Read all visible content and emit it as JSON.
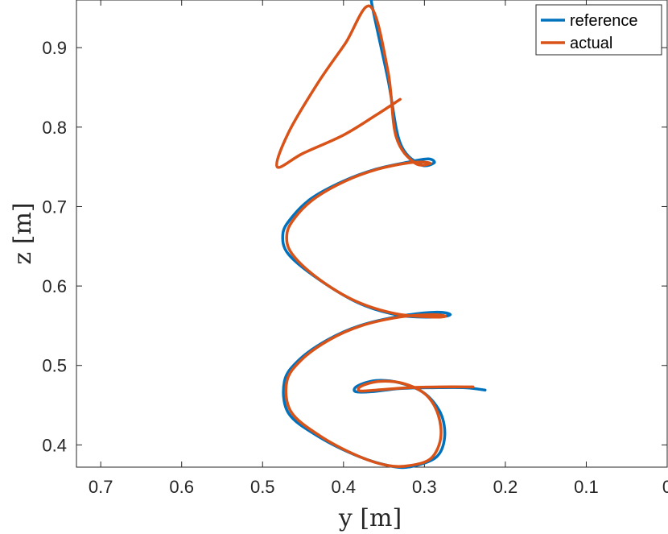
{
  "chart_data": {
    "type": "line",
    "title": "",
    "xlabel": "y [m]",
    "ylabel": "z [m]",
    "x_reversed": true,
    "xlim": [
      0,
      0.73
    ],
    "ylim": [
      0.372,
      0.96
    ],
    "xticks": [
      0.7,
      0.6,
      0.5,
      0.4,
      0.3,
      0.2,
      0.1,
      0
    ],
    "xtick_labels": [
      "0.7",
      "0.6",
      "0.5",
      "0.4",
      "0.3",
      "0.2",
      "0.1",
      "0"
    ],
    "yticks": [
      0.4,
      0.5,
      0.6,
      0.7,
      0.8,
      0.9
    ],
    "ytick_labels": [
      "0.4",
      "0.5",
      "0.6",
      "0.7",
      "0.8",
      "0.9"
    ],
    "grid": false,
    "legend_position": "top-right",
    "series": [
      {
        "name": "reference",
        "color": "#0072bd",
        "points": [
          [
            0.225,
            0.469
          ],
          [
            0.25,
            0.472
          ],
          [
            0.29,
            0.472
          ],
          [
            0.33,
            0.471
          ],
          [
            0.365,
            0.467
          ],
          [
            0.385,
            0.467
          ],
          [
            0.383,
            0.474
          ],
          [
            0.36,
            0.481
          ],
          [
            0.33,
            0.478
          ],
          [
            0.3,
            0.465
          ],
          [
            0.28,
            0.44
          ],
          [
            0.275,
            0.41
          ],
          [
            0.285,
            0.385
          ],
          [
            0.315,
            0.373
          ],
          [
            0.34,
            0.373
          ],
          [
            0.38,
            0.385
          ],
          [
            0.43,
            0.41
          ],
          [
            0.468,
            0.44
          ],
          [
            0.473,
            0.48
          ],
          [
            0.455,
            0.507
          ],
          [
            0.42,
            0.532
          ],
          [
            0.38,
            0.55
          ],
          [
            0.33,
            0.562
          ],
          [
            0.285,
            0.567
          ],
          [
            0.268,
            0.564
          ],
          [
            0.285,
            0.561
          ],
          [
            0.33,
            0.563
          ],
          [
            0.38,
            0.578
          ],
          [
            0.43,
            0.608
          ],
          [
            0.468,
            0.64
          ],
          [
            0.475,
            0.665
          ],
          [
            0.465,
            0.685
          ],
          [
            0.44,
            0.71
          ],
          [
            0.4,
            0.732
          ],
          [
            0.36,
            0.747
          ],
          [
            0.32,
            0.756
          ],
          [
            0.295,
            0.76
          ],
          [
            0.288,
            0.755
          ],
          [
            0.305,
            0.753
          ],
          [
            0.33,
            0.78
          ],
          [
            0.345,
            0.86
          ],
          [
            0.365,
            0.955
          ],
          [
            0.363,
            0.962
          ]
        ]
      },
      {
        "name": "actual",
        "color": "#d95319",
        "points": [
          [
            0.24,
            0.473
          ],
          [
            0.28,
            0.473
          ],
          [
            0.32,
            0.472
          ],
          [
            0.36,
            0.469
          ],
          [
            0.38,
            0.468
          ],
          [
            0.378,
            0.474
          ],
          [
            0.355,
            0.48
          ],
          [
            0.325,
            0.477
          ],
          [
            0.298,
            0.463
          ],
          [
            0.283,
            0.438
          ],
          [
            0.28,
            0.408
          ],
          [
            0.292,
            0.383
          ],
          [
            0.318,
            0.374
          ],
          [
            0.345,
            0.374
          ],
          [
            0.382,
            0.386
          ],
          [
            0.43,
            0.412
          ],
          [
            0.465,
            0.442
          ],
          [
            0.47,
            0.48
          ],
          [
            0.452,
            0.507
          ],
          [
            0.418,
            0.532
          ],
          [
            0.378,
            0.55
          ],
          [
            0.33,
            0.561
          ],
          [
            0.29,
            0.564
          ],
          [
            0.274,
            0.562
          ],
          [
            0.29,
            0.561
          ],
          [
            0.335,
            0.565
          ],
          [
            0.385,
            0.581
          ],
          [
            0.432,
            0.61
          ],
          [
            0.464,
            0.641
          ],
          [
            0.47,
            0.665
          ],
          [
            0.46,
            0.686
          ],
          [
            0.436,
            0.71
          ],
          [
            0.398,
            0.732
          ],
          [
            0.358,
            0.747
          ],
          [
            0.32,
            0.755
          ],
          [
            0.3,
            0.756
          ],
          [
            0.293,
            0.754
          ],
          [
            0.312,
            0.755
          ],
          [
            0.335,
            0.788
          ],
          [
            0.345,
            0.87
          ],
          [
            0.367,
            0.952
          ],
          [
            0.398,
            0.905
          ],
          [
            0.432,
            0.855
          ],
          [
            0.468,
            0.793
          ],
          [
            0.482,
            0.75
          ],
          [
            0.45,
            0.767
          ],
          [
            0.4,
            0.79
          ],
          [
            0.36,
            0.815
          ],
          [
            0.33,
            0.835
          ]
        ]
      }
    ]
  }
}
